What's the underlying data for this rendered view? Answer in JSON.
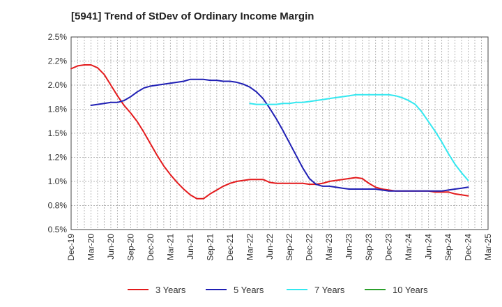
{
  "chart_data": {
    "type": "line",
    "title": "[5941]  Trend of StDev of Ordinary Income Margin",
    "xlabel": "",
    "ylabel": "",
    "ylim": [
      0.5,
      2.5
    ],
    "y_ticks": [
      "0.5%",
      "0.8%",
      "1.0%",
      "1.2%",
      "1.5%",
      "1.8%",
      "2.0%",
      "2.2%",
      "2.5%"
    ],
    "y_tick_values": [
      0.5,
      0.75,
      1.0,
      1.25,
      1.5,
      1.75,
      2.0,
      2.25,
      2.5
    ],
    "x_ticks": [
      "Dec-19",
      "Mar-20",
      "Jun-20",
      "Sep-20",
      "Dec-20",
      "Mar-21",
      "Jun-21",
      "Sep-21",
      "Dec-21",
      "Mar-22",
      "Jun-22",
      "Sep-22",
      "Dec-22",
      "Mar-23",
      "Jun-23",
      "Sep-23",
      "Dec-23",
      "Mar-24",
      "Jun-24",
      "Sep-24",
      "Dec-24",
      "Mar-25"
    ],
    "grid": true,
    "legend_position": "bottom",
    "series": [
      {
        "name": "3 Years",
        "color": "#e31a1c",
        "x": [
          "Dec-19",
          "Jan-20",
          "Feb-20",
          "Mar-20",
          "Apr-20",
          "May-20",
          "Jun-20",
          "Jul-20",
          "Aug-20",
          "Sep-20",
          "Oct-20",
          "Nov-20",
          "Dec-20",
          "Jan-21",
          "Feb-21",
          "Mar-21",
          "Apr-21",
          "May-21",
          "Jun-21",
          "Jul-21",
          "Aug-21",
          "Sep-21",
          "Oct-21",
          "Nov-21",
          "Dec-21",
          "Jan-22",
          "Feb-22",
          "Mar-22",
          "Apr-22",
          "May-22",
          "Jun-22",
          "Jul-22",
          "Aug-22",
          "Sep-22",
          "Oct-22",
          "Nov-22",
          "Dec-22",
          "Jan-23",
          "Feb-23",
          "Mar-23",
          "Apr-23",
          "May-23",
          "Jun-23",
          "Jul-23",
          "Aug-23",
          "Sep-23",
          "Oct-23",
          "Nov-23",
          "Dec-23",
          "Jan-24",
          "Feb-24",
          "Mar-24",
          "Apr-24",
          "May-24",
          "Jun-24",
          "Jul-24",
          "Aug-24",
          "Sep-24",
          "Oct-24",
          "Nov-24",
          "Dec-24"
        ],
        "values": [
          2.17,
          2.2,
          2.21,
          2.21,
          2.18,
          2.11,
          2.0,
          1.89,
          1.79,
          1.71,
          1.62,
          1.51,
          1.39,
          1.27,
          1.16,
          1.07,
          0.99,
          0.92,
          0.86,
          0.82,
          0.82,
          0.87,
          0.91,
          0.95,
          0.98,
          1.0,
          1.01,
          1.02,
          1.02,
          1.02,
          0.99,
          0.98,
          0.98,
          0.98,
          0.98,
          0.98,
          0.97,
          0.97,
          0.98,
          1.0,
          1.01,
          1.02,
          1.03,
          1.04,
          1.03,
          0.98,
          0.94,
          0.92,
          0.91,
          0.9,
          0.9,
          0.9,
          0.9,
          0.9,
          0.9,
          0.89,
          0.89,
          0.89,
          0.87,
          0.86,
          0.85
        ]
      },
      {
        "name": "5 Years",
        "color": "#1f1fb4",
        "x": [
          "Mar-20",
          "Apr-20",
          "May-20",
          "Jun-20",
          "Jul-20",
          "Aug-20",
          "Sep-20",
          "Oct-20",
          "Nov-20",
          "Dec-20",
          "Jan-21",
          "Feb-21",
          "Mar-21",
          "Apr-21",
          "May-21",
          "Jun-21",
          "Jul-21",
          "Aug-21",
          "Sep-21",
          "Oct-21",
          "Nov-21",
          "Dec-21",
          "Jan-22",
          "Feb-22",
          "Mar-22",
          "Apr-22",
          "May-22",
          "Jun-22",
          "Jul-22",
          "Aug-22",
          "Sep-22",
          "Oct-22",
          "Nov-22",
          "Dec-22",
          "Jan-23",
          "Feb-23",
          "Mar-23",
          "Apr-23",
          "May-23",
          "Jun-23",
          "Jul-23",
          "Aug-23",
          "Sep-23",
          "Oct-23",
          "Nov-23",
          "Dec-23",
          "Jan-24",
          "Feb-24",
          "Mar-24",
          "Apr-24",
          "May-24",
          "Jun-24",
          "Jul-24",
          "Aug-24",
          "Sep-24",
          "Oct-24",
          "Nov-24",
          "Dec-24"
        ],
        "values": [
          1.79,
          1.8,
          1.81,
          1.82,
          1.82,
          1.84,
          1.88,
          1.93,
          1.97,
          1.99,
          2.0,
          2.01,
          2.02,
          2.03,
          2.04,
          2.06,
          2.06,
          2.06,
          2.05,
          2.05,
          2.04,
          2.04,
          2.03,
          2.01,
          1.98,
          1.93,
          1.86,
          1.76,
          1.65,
          1.53,
          1.4,
          1.27,
          1.14,
          1.03,
          0.97,
          0.95,
          0.95,
          0.94,
          0.93,
          0.92,
          0.92,
          0.92,
          0.92,
          0.92,
          0.91,
          0.9,
          0.9,
          0.9,
          0.9,
          0.9,
          0.9,
          0.9,
          0.9,
          0.9,
          0.91,
          0.92,
          0.93,
          0.94
        ]
      },
      {
        "name": "7 Years",
        "color": "#33e8f0",
        "x": [
          "Mar-22",
          "Apr-22",
          "May-22",
          "Jun-22",
          "Jul-22",
          "Aug-22",
          "Sep-22",
          "Oct-22",
          "Nov-22",
          "Dec-22",
          "Jan-23",
          "Feb-23",
          "Mar-23",
          "Apr-23",
          "May-23",
          "Jun-23",
          "Jul-23",
          "Aug-23",
          "Sep-23",
          "Oct-23",
          "Nov-23",
          "Dec-23",
          "Jan-24",
          "Feb-24",
          "Mar-24",
          "Apr-24",
          "May-24",
          "Jun-24",
          "Jul-24",
          "Aug-24",
          "Sep-24",
          "Oct-24",
          "Nov-24",
          "Dec-24"
        ],
        "values": [
          1.81,
          1.8,
          1.8,
          1.8,
          1.8,
          1.81,
          1.81,
          1.82,
          1.82,
          1.83,
          1.84,
          1.85,
          1.86,
          1.87,
          1.88,
          1.89,
          1.9,
          1.9,
          1.9,
          1.9,
          1.9,
          1.9,
          1.89,
          1.87,
          1.84,
          1.8,
          1.72,
          1.62,
          1.52,
          1.41,
          1.29,
          1.18,
          1.09,
          1.01
        ]
      },
      {
        "name": "10 Years",
        "color": "#2ca02c",
        "x": [],
        "values": []
      }
    ]
  }
}
